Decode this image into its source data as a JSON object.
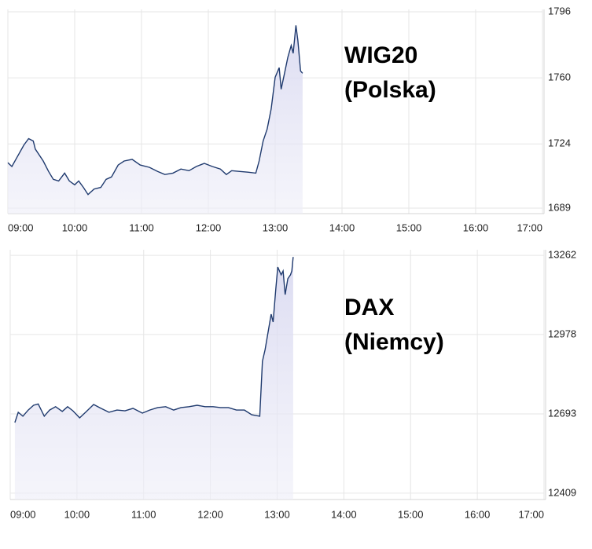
{
  "chart_data": [
    {
      "type": "line",
      "annotations": [
        "WIG20",
        "(Polska)"
      ],
      "color": "#1f3a6e",
      "grid": true,
      "x": [
        9.0,
        9.06,
        9.14,
        9.24,
        9.31,
        9.38,
        9.41,
        9.53,
        9.61,
        9.68,
        9.76,
        9.85,
        9.92,
        10.0,
        10.06,
        10.13,
        10.2,
        10.29,
        10.39,
        10.47,
        10.55,
        10.65,
        10.74,
        10.86,
        10.98,
        11.12,
        11.24,
        11.35,
        11.47,
        11.59,
        11.71,
        11.82,
        11.94,
        12.06,
        12.18,
        12.27,
        12.35,
        12.47,
        12.59,
        12.71,
        12.76,
        12.82,
        12.88,
        12.94,
        13.0,
        13.06,
        13.09,
        13.14,
        13.19,
        13.24,
        13.27,
        13.31,
        13.34,
        13.38,
        13.41
      ],
      "values": [
        1713.8,
        1711.7,
        1716.9,
        1723.4,
        1726.9,
        1725.6,
        1721.2,
        1714.7,
        1709,
        1704.7,
        1703.8,
        1708.1,
        1703.8,
        1701.7,
        1703.8,
        1700.3,
        1696.4,
        1699.4,
        1700.3,
        1704.7,
        1706,
        1712.5,
        1714.7,
        1715.6,
        1712.5,
        1711.2,
        1709,
        1707.3,
        1708.1,
        1710.3,
        1709.4,
        1711.7,
        1713.4,
        1711.7,
        1710.3,
        1707.3,
        1709.4,
        1709,
        1708.6,
        1708.1,
        1714.7,
        1725.6,
        1732.1,
        1743,
        1760.3,
        1765.6,
        1753.8,
        1762.5,
        1771.2,
        1777.7,
        1773.4,
        1788.6,
        1780.3,
        1763.8,
        1762.5
      ],
      "xlim": [
        9,
        17
      ],
      "xticks": [
        {
          "value": 9,
          "label": "09:00"
        },
        {
          "value": 10,
          "label": "10:00"
        },
        {
          "value": 11,
          "label": "11:00"
        },
        {
          "value": 12,
          "label": "12:00"
        },
        {
          "value": 13,
          "label": "13:00"
        },
        {
          "value": 14,
          "label": "14:00"
        },
        {
          "value": 15,
          "label": "15:00"
        },
        {
          "value": 16,
          "label": "16:00"
        },
        {
          "value": 17,
          "label": "17:00"
        }
      ],
      "ylim": [
        1686,
        1797.3
      ],
      "yticks": [
        1689,
        1724,
        1760,
        1796
      ]
    },
    {
      "type": "line",
      "annotations": [
        "DAX",
        "(Niemcy)"
      ],
      "color": "#1f3a6e",
      "grid": true,
      "x": [
        9.07,
        9.12,
        9.19,
        9.27,
        9.35,
        9.42,
        9.51,
        9.59,
        9.68,
        9.78,
        9.86,
        9.94,
        10.04,
        10.13,
        10.25,
        10.36,
        10.48,
        10.6,
        10.72,
        10.84,
        10.98,
        11.09,
        11.21,
        11.33,
        11.45,
        11.56,
        11.68,
        11.8,
        11.92,
        12.04,
        12.15,
        12.27,
        12.39,
        12.51,
        12.62,
        12.74,
        12.78,
        12.82,
        12.87,
        12.91,
        12.94,
        12.98,
        13.01,
        13.06,
        13.09,
        13.12,
        13.16,
        13.2,
        13.22,
        13.24
      ],
      "values": [
        12662,
        12699,
        12685,
        12707,
        12724,
        12729,
        12685,
        12707,
        12719,
        12702,
        12719,
        12704,
        12679,
        12699,
        12727,
        12713,
        12699,
        12707,
        12704,
        12713,
        12696,
        12707,
        12716,
        12719,
        12707,
        12716,
        12719,
        12724,
        12719,
        12719,
        12716,
        12716,
        12707,
        12707,
        12690,
        12685,
        12882,
        12924,
        12995,
        13051,
        13023,
        13141,
        13220,
        13192,
        13206,
        13121,
        13178,
        13192,
        13206,
        13256
      ],
      "xlim": [
        9,
        17
      ],
      "xticks": [
        {
          "value": 9,
          "label": "09:00"
        },
        {
          "value": 10,
          "label": "10:00"
        },
        {
          "value": 11,
          "label": "11:00"
        },
        {
          "value": 12,
          "label": "12:00"
        },
        {
          "value": 13,
          "label": "13:00"
        },
        {
          "value": 14,
          "label": "14:00"
        },
        {
          "value": 15,
          "label": "15:00"
        },
        {
          "value": 16,
          "label": "16:00"
        },
        {
          "value": 17,
          "label": "17:00"
        }
      ],
      "ylim": [
        12386,
        13282
      ],
      "yticks": [
        12409,
        12693,
        12978,
        13262
      ]
    }
  ]
}
